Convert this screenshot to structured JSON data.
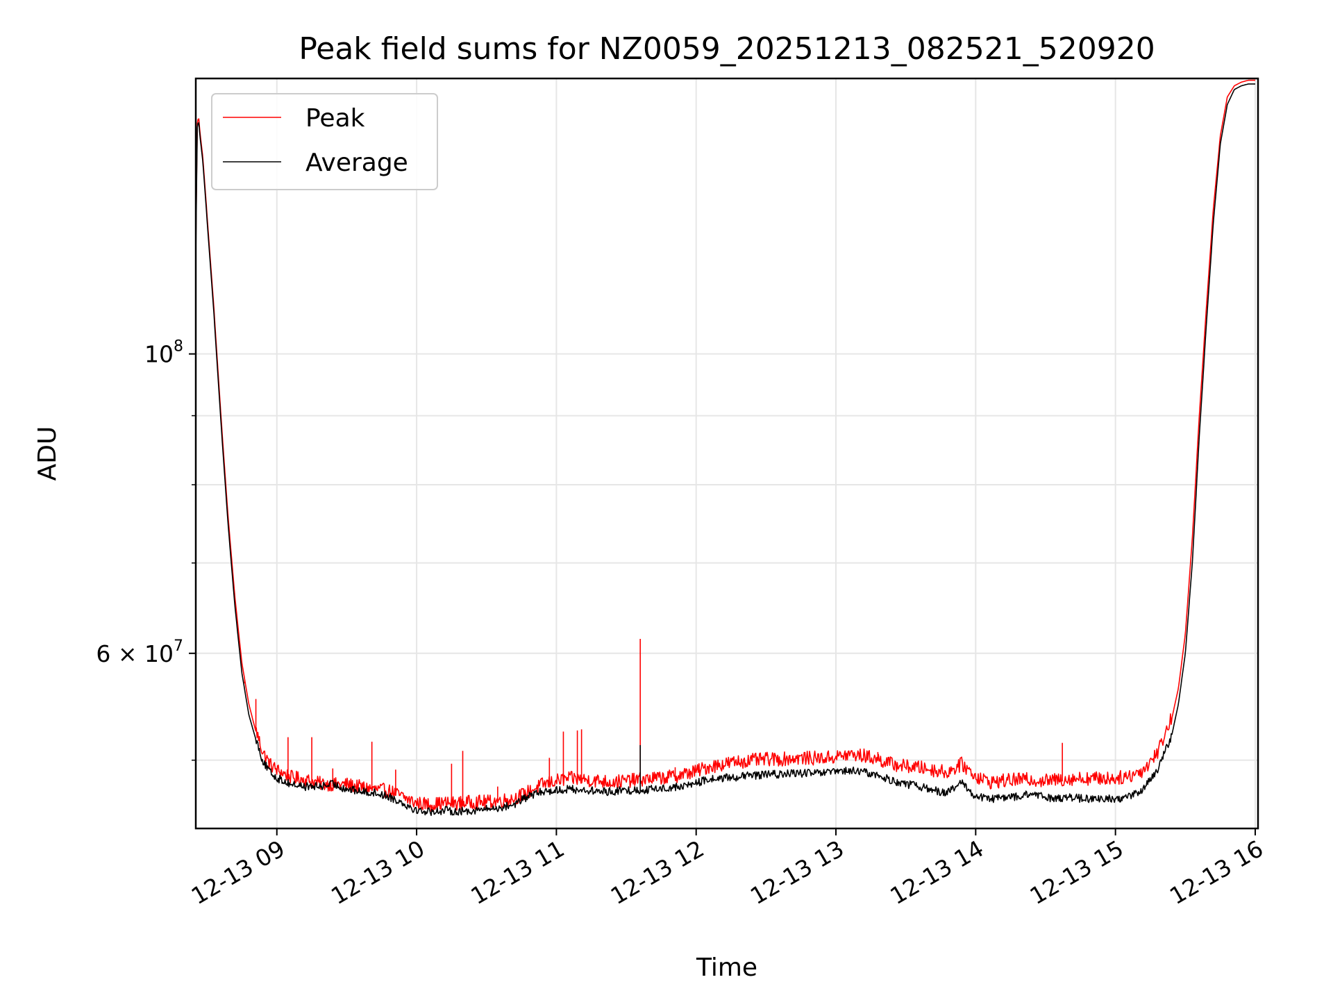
{
  "chart_data": {
    "type": "line",
    "title": "Peak field sums for NZ0059_20251213_082521_520920",
    "xlabel": "Time",
    "ylabel": "ADU",
    "y_scale": "log",
    "xlim_hours": [
      8.42,
      16.02
    ],
    "ylim": [
      44500000,
      160000000
    ],
    "grid": true,
    "legend_position": "upper-left",
    "x_ticks": [
      {
        "hour": 9,
        "label": "12-13 09"
      },
      {
        "hour": 10,
        "label": "12-13 10"
      },
      {
        "hour": 11,
        "label": "12-13 11"
      },
      {
        "hour": 12,
        "label": "12-13 12"
      },
      {
        "hour": 13,
        "label": "12-13 13"
      },
      {
        "hour": 14,
        "label": "12-13 14"
      },
      {
        "hour": 15,
        "label": "12-13 15"
      },
      {
        "hour": 16,
        "label": "12-13 16"
      }
    ],
    "y_ticks_major": [
      {
        "value": 100000000,
        "base": "10",
        "exp": "8",
        "mantissa": ""
      },
      {
        "value": 60000000,
        "base": "10",
        "exp": "7",
        "mantissa": "6"
      }
    ],
    "y_ticks_minor": [
      50000000,
      70000000,
      80000000,
      90000000
    ],
    "series": [
      {
        "name": "Peak",
        "color": "#ff0000",
        "x_hours": [
          8.42,
          8.43,
          8.44,
          8.45,
          8.47,
          8.5,
          8.55,
          8.6,
          8.65,
          8.7,
          8.75,
          8.8,
          8.85,
          8.9,
          8.95,
          9.0,
          9.1,
          9.2,
          9.3,
          9.4,
          9.5,
          9.6,
          9.7,
          9.8,
          9.9,
          10.0,
          10.1,
          10.2,
          10.3,
          10.4,
          10.5,
          10.6,
          10.7,
          10.8,
          10.9,
          11.0,
          11.1,
          11.2,
          11.3,
          11.4,
          11.5,
          11.6,
          11.7,
          11.8,
          11.9,
          12.0,
          12.1,
          12.2,
          12.3,
          12.4,
          12.5,
          12.6,
          12.7,
          12.8,
          12.9,
          13.0,
          13.1,
          13.2,
          13.3,
          13.4,
          13.5,
          13.6,
          13.7,
          13.8,
          13.9,
          14.0,
          14.1,
          14.2,
          14.3,
          14.4,
          14.5,
          14.6,
          14.7,
          14.8,
          14.9,
          15.0,
          15.1,
          15.2,
          15.3,
          15.4,
          15.45,
          15.5,
          15.55,
          15.6,
          15.65,
          15.7,
          15.75,
          15.8,
          15.85,
          15.9,
          15.95,
          16.0
        ],
        "values": [
          120000000,
          148000000,
          150000000,
          146000000,
          140000000,
          127000000,
          108000000,
          90000000,
          76000000,
          66000000,
          59000000,
          55000000,
          52500000,
          50500000,
          49500000,
          49000000,
          48400000,
          48200000,
          47900000,
          47800000,
          47800000,
          47600000,
          47400000,
          47300000,
          46800000,
          46300000,
          46200000,
          46300000,
          46300000,
          46400000,
          46400000,
          46500000,
          46700000,
          47200000,
          47800000,
          48100000,
          48300000,
          48200000,
          48100000,
          48000000,
          48100000,
          48200000,
          48300000,
          48400000,
          48600000,
          48900000,
          49300000,
          49500000,
          49700000,
          49800000,
          49900000,
          49900000,
          50000000,
          50000000,
          50000000,
          50100000,
          50300000,
          50200000,
          49900000,
          49500000,
          49300000,
          49200000,
          49000000,
          48800000,
          49500000,
          48500000,
          48000000,
          48100000,
          48200000,
          48200000,
          48100000,
          48200000,
          48300000,
          48300000,
          48300000,
          48300000,
          48500000,
          49000000,
          50500000,
          53500000,
          56500000,
          62000000,
          73000000,
          90000000,
          108000000,
          128000000,
          145000000,
          155000000,
          158000000,
          159000000,
          159500000,
          159500000
        ],
        "spikes": [
          {
            "hour": 8.77,
            "value": 57000000
          },
          {
            "hour": 8.85,
            "value": 55500000
          },
          {
            "hour": 9.08,
            "value": 52000000
          },
          {
            "hour": 9.25,
            "value": 52000000
          },
          {
            "hour": 9.4,
            "value": 49300000
          },
          {
            "hour": 9.68,
            "value": 51600000
          },
          {
            "hour": 9.85,
            "value": 49200000
          },
          {
            "hour": 10.25,
            "value": 49700000
          },
          {
            "hour": 10.33,
            "value": 50800000
          },
          {
            "hour": 10.58,
            "value": 47800000
          },
          {
            "hour": 10.95,
            "value": 50200000
          },
          {
            "hour": 11.05,
            "value": 52500000
          },
          {
            "hour": 11.15,
            "value": 52600000
          },
          {
            "hour": 11.18,
            "value": 52700000
          },
          {
            "hour": 11.6,
            "value": 61500000
          },
          {
            "hour": 11.85,
            "value": 49400000
          },
          {
            "hour": 13.3,
            "value": 50700000
          },
          {
            "hour": 14.62,
            "value": 51500000
          }
        ]
      },
      {
        "name": "Average",
        "color": "#000000",
        "x_hours": [
          8.42,
          8.43,
          8.44,
          8.45,
          8.47,
          8.5,
          8.55,
          8.6,
          8.65,
          8.7,
          8.75,
          8.8,
          8.85,
          8.9,
          8.95,
          9.0,
          9.1,
          9.2,
          9.3,
          9.4,
          9.5,
          9.6,
          9.7,
          9.8,
          9.9,
          10.0,
          10.1,
          10.2,
          10.3,
          10.4,
          10.5,
          10.6,
          10.7,
          10.8,
          10.9,
          11.0,
          11.1,
          11.2,
          11.3,
          11.4,
          11.5,
          11.6,
          11.7,
          11.8,
          11.9,
          12.0,
          12.1,
          12.2,
          12.3,
          12.4,
          12.5,
          12.6,
          12.7,
          12.8,
          12.9,
          13.0,
          13.1,
          13.2,
          13.3,
          13.4,
          13.5,
          13.6,
          13.7,
          13.8,
          13.9,
          14.0,
          14.1,
          14.2,
          14.3,
          14.4,
          14.5,
          14.6,
          14.7,
          14.8,
          14.9,
          15.0,
          15.1,
          15.2,
          15.3,
          15.4,
          15.45,
          15.5,
          15.55,
          15.6,
          15.65,
          15.7,
          15.75,
          15.8,
          15.85,
          15.9,
          15.95,
          16.0
        ],
        "values": [
          118000000,
          147000000,
          149000000,
          145000000,
          139000000,
          126000000,
          107000000,
          89000000,
          75000000,
          65000000,
          58000000,
          54000000,
          51800000,
          49800000,
          48900000,
          48400000,
          47900000,
          47700000,
          47700000,
          47900000,
          47500000,
          47300000,
          47200000,
          46900000,
          46400000,
          45800000,
          45700000,
          45800000,
          45700000,
          45800000,
          45900000,
          46000000,
          46300000,
          46900000,
          47300000,
          47400000,
          47500000,
          47400000,
          47300000,
          47300000,
          47400000,
          47400000,
          47500000,
          47600000,
          47700000,
          48000000,
          48300000,
          48400000,
          48500000,
          48600000,
          48700000,
          48700000,
          48800000,
          48800000,
          48800000,
          48900000,
          49000000,
          48900000,
          48600000,
          48200000,
          47900000,
          47700000,
          47400000,
          47200000,
          48000000,
          46900000,
          46700000,
          46800000,
          46900000,
          47100000,
          46800000,
          46800000,
          46800000,
          46700000,
          46700000,
          46700000,
          46900000,
          47500000,
          49000000,
          52000000,
          55000000,
          60000000,
          70000000,
          87000000,
          105000000,
          125000000,
          143000000,
          153000000,
          157000000,
          158000000,
          158500000,
          158500000
        ],
        "spikes": [
          {
            "hour": 11.6,
            "value": 51300000
          }
        ]
      }
    ]
  }
}
